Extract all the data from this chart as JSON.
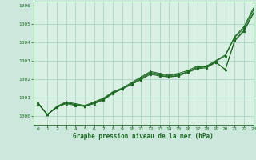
{
  "title": "Graphe pression niveau de la mer (hPa)",
  "background_color": "#cce8dc",
  "plot_bg_color": "#daf0e4",
  "grid_color": "#aad4c0",
  "line_color": "#1a6620",
  "marker_color": "#1a6620",
  "xlim": [
    -0.5,
    23
  ],
  "ylim": [
    999.5,
    1006.2
  ],
  "xticks": [
    0,
    1,
    2,
    3,
    4,
    5,
    6,
    7,
    8,
    9,
    10,
    11,
    12,
    13,
    14,
    15,
    16,
    17,
    18,
    19,
    20,
    21,
    22,
    23
  ],
  "yticks": [
    1000,
    1001,
    1002,
    1003,
    1004,
    1005,
    1006
  ],
  "series": [
    [
      1000.7,
      1000.05,
      1000.45,
      1000.65,
      1000.55,
      1000.5,
      1000.65,
      1000.85,
      1001.2,
      1001.45,
      1001.75,
      1002.05,
      1002.35,
      1002.25,
      1002.15,
      1002.25,
      1002.35,
      1002.65,
      1002.65,
      1002.95,
      1003.25,
      1004.25,
      1004.75,
      1005.75
    ],
    [
      1000.7,
      1000.05,
      1000.5,
      1000.75,
      1000.65,
      1000.55,
      1000.75,
      1000.95,
      1001.3,
      1001.5,
      1001.8,
      1002.1,
      1002.4,
      1002.3,
      1002.2,
      1002.3,
      1002.45,
      1002.7,
      1002.7,
      1003.0,
      1003.3,
      1004.3,
      1004.85,
      1005.85
    ],
    [
      1000.65,
      1000.05,
      1000.45,
      1000.7,
      1000.6,
      1000.5,
      1000.7,
      1000.9,
      1001.25,
      1001.45,
      1001.7,
      1002.0,
      1002.3,
      1002.2,
      1002.1,
      1002.2,
      1002.4,
      1002.6,
      1002.65,
      1002.9,
      1002.5,
      1004.1,
      1004.65,
      1005.6
    ],
    [
      1000.65,
      1000.05,
      1000.45,
      1000.7,
      1000.6,
      1000.5,
      1000.7,
      1000.9,
      1001.25,
      1001.45,
      1001.7,
      1001.95,
      1002.25,
      1002.15,
      1002.1,
      1002.15,
      1002.35,
      1002.55,
      1002.6,
      1002.9,
      1002.5,
      1004.05,
      1004.6,
      1005.55
    ]
  ]
}
